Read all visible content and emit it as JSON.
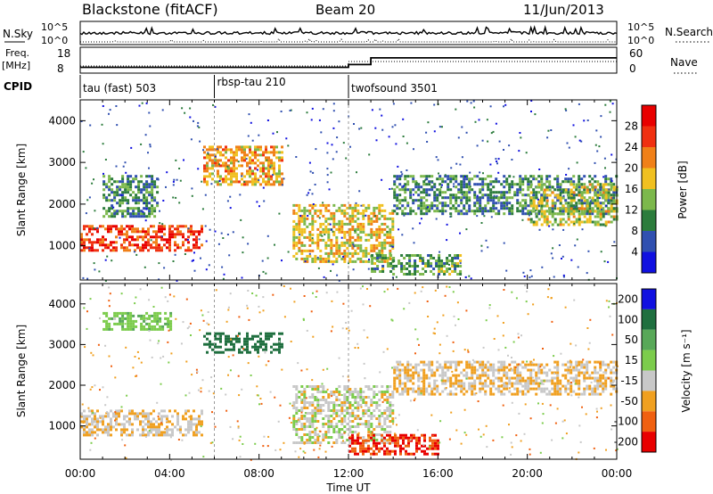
{
  "header": {
    "station": "Blackstone (fitACF)",
    "beam": "Beam 20",
    "date": "11/Jun/2013"
  },
  "status_panels": {
    "nsky_label": "N.Sky",
    "nsearch_label": "N.Search",
    "freq_label_line1": "Freq.",
    "freq_label_line2": "[MHz]",
    "nave_label": "Nave",
    "cpid_label": "CPID",
    "left_ticks_top": [
      "10^5",
      "10^0"
    ],
    "right_ticks_top": [
      "10^5",
      "10^0"
    ],
    "left_ticks_freq": [
      "18",
      "8"
    ],
    "right_ticks_nave": [
      "60",
      "0"
    ],
    "freq_segments": [
      {
        "t0": 0.0,
        "t1": 6.0,
        "mhz": 10.5
      },
      {
        "t0": 6.0,
        "t1": 12.0,
        "mhz": 10.5
      },
      {
        "t0": 12.0,
        "t1": 13.0,
        "mhz": 12.2
      },
      {
        "t0": 13.0,
        "t1": 24.0,
        "mhz": 16.4
      }
    ],
    "cpid_segments": [
      {
        "t0": 0.0,
        "label": "tau (fast) 503"
      },
      {
        "t0": 6.0,
        "label": "rbsp-tau 210"
      },
      {
        "t0": 12.0,
        "label": "twofsound 3501"
      }
    ]
  },
  "chart_data": [
    {
      "type": "heatmap",
      "name": "power",
      "xlabel": "Time UT",
      "ylabel": "Slant Range [km]",
      "xlim": [
        0,
        24
      ],
      "ylim": [
        180,
        4500
      ],
      "xticks": [
        "00:00",
        "04:00",
        "08:00",
        "12:00",
        "16:00",
        "20:00",
        "00:00"
      ],
      "yticks": [
        1000,
        2000,
        3000,
        4000
      ],
      "colorbar": {
        "label": "Power [dB]",
        "ticks": [
          4,
          8,
          12,
          16,
          20,
          24,
          28
        ],
        "range": [
          0,
          32
        ],
        "colors": [
          "#1010e0",
          "#3050b0",
          "#2c7c3c",
          "#7cb84c",
          "#f0c020",
          "#f08018",
          "#f03010",
          "#e80000"
        ]
      },
      "regions": [
        {
          "t0": 0.0,
          "t1": 5.5,
          "r0": 900,
          "r1": 1500,
          "value": 26
        },
        {
          "t0": 1.0,
          "t1": 3.5,
          "r0": 1700,
          "r1": 2700,
          "value": 10
        },
        {
          "t0": 5.5,
          "t1": 9.0,
          "r0": 2500,
          "r1": 3400,
          "value": 20
        },
        {
          "t0": 9.5,
          "t1": 14.0,
          "r0": 600,
          "r1": 2000,
          "value": 18
        },
        {
          "t0": 13.0,
          "t1": 17.0,
          "r0": 300,
          "r1": 800,
          "value": 12
        },
        {
          "t0": 14.0,
          "t1": 24.0,
          "r0": 1800,
          "r1": 2700,
          "value": 10
        },
        {
          "t0": 20.0,
          "t1": 24.0,
          "r0": 1500,
          "r1": 2500,
          "value": 16
        }
      ]
    },
    {
      "type": "heatmap",
      "name": "velocity",
      "xlabel": "Time UT",
      "ylabel": "Slant Range [km]",
      "xlim": [
        0,
        24
      ],
      "ylim": [
        180,
        4500
      ],
      "xticks": [
        "00:00",
        "04:00",
        "08:00",
        "12:00",
        "16:00",
        "20:00",
        "00:00"
      ],
      "yticks": [
        1000,
        2000,
        3000,
        4000
      ],
      "colorbar": {
        "label": "Velocity [m s⁻¹]",
        "ticks": [
          200,
          100,
          50,
          15,
          -15,
          -50,
          -100,
          -200
        ],
        "colors": [
          "#1010e0",
          "#1f6f3f",
          "#58a858",
          "#7ccc4c",
          "#c8c8c8",
          "#f0a020",
          "#f06010",
          "#e80000"
        ]
      },
      "regions": [
        {
          "t0": 0.0,
          "t1": 5.5,
          "r0": 800,
          "r1": 1400,
          "value": 0
        },
        {
          "t0": 1.0,
          "t1": 4.0,
          "r0": 3400,
          "r1": 3800,
          "value": 60
        },
        {
          "t0": 5.5,
          "t1": 9.0,
          "r0": 2800,
          "r1": 3300,
          "value": 180
        },
        {
          "t0": 9.5,
          "t1": 14.0,
          "r0": 600,
          "r1": 2000,
          "value": 20
        },
        {
          "t0": 12.0,
          "t1": 16.0,
          "r0": 300,
          "r1": 800,
          "value": -80
        },
        {
          "t0": 14.0,
          "t1": 24.0,
          "r0": 1800,
          "r1": 2600,
          "value": 0
        }
      ]
    }
  ],
  "colors": {
    "scatter_bg": "#ffffff",
    "axis": "#000000"
  }
}
